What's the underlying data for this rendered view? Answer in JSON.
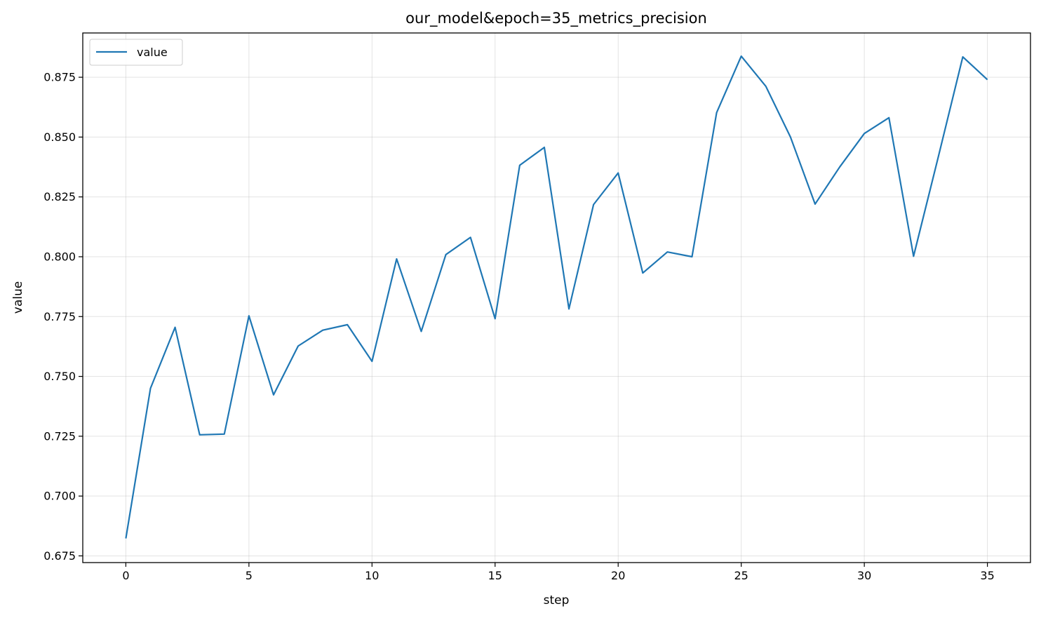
{
  "chart_data": {
    "type": "line",
    "title": "our_model&epoch=35_metrics_precision",
    "xlabel": "step",
    "ylabel": "value",
    "xlim": [
      -1.75,
      36.75
    ],
    "ylim": [
      0.6722,
      0.8935
    ],
    "xticks": [
      0,
      5,
      10,
      15,
      20,
      25,
      30,
      35
    ],
    "xtick_labels": [
      "0",
      "5",
      "10",
      "15",
      "20",
      "25",
      "30",
      "35"
    ],
    "yticks": [
      0.675,
      0.7,
      0.725,
      0.75,
      0.775,
      0.8,
      0.825,
      0.85,
      0.875
    ],
    "ytick_labels": [
      "0.675",
      "0.700",
      "0.725",
      "0.750",
      "0.775",
      "0.800",
      "0.825",
      "0.850",
      "0.875"
    ],
    "grid": true,
    "legend_position": "top-left",
    "series": [
      {
        "name": "value",
        "color": "#1f77b4",
        "x": [
          0,
          1,
          2,
          3,
          4,
          5,
          6,
          7,
          8,
          9,
          10,
          11,
          12,
          13,
          14,
          15,
          16,
          17,
          18,
          19,
          20,
          21,
          22,
          23,
          24,
          25,
          26,
          27,
          28,
          29,
          30,
          31,
          32,
          33,
          34,
          35
        ],
        "y": [
          0.6823,
          0.745,
          0.7705,
          0.7256,
          0.7259,
          0.7753,
          0.7423,
          0.7627,
          0.7693,
          0.7716,
          0.7563,
          0.7991,
          0.7688,
          0.8009,
          0.8081,
          0.7741,
          0.8382,
          0.8457,
          0.7782,
          0.8218,
          0.835,
          0.7932,
          0.802,
          0.8,
          0.8602,
          0.8838,
          0.8712,
          0.85,
          0.822,
          0.8375,
          0.8515,
          0.8581,
          0.8002,
          0.8415,
          0.8835,
          0.874
        ]
      }
    ]
  }
}
